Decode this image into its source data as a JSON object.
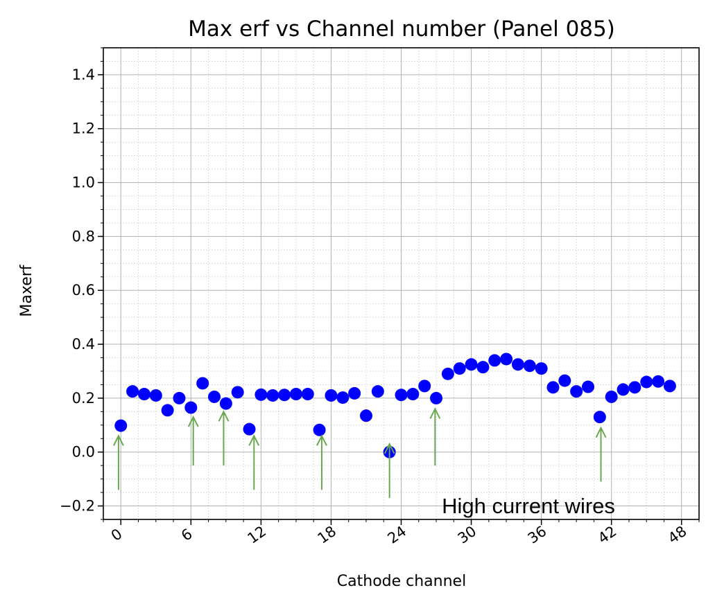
{
  "chart_data": {
    "type": "scatter",
    "title": "Max erf vs Channel number (Panel 085)",
    "xlabel": "Cathode channel",
    "ylabel": "Maxerf",
    "xlim": [
      -1.5,
      49.5
    ],
    "ylim": [
      -0.25,
      1.5
    ],
    "xticks": [
      0,
      6,
      12,
      18,
      24,
      30,
      36,
      42,
      48
    ],
    "xtick_labels": [
      "0",
      "6",
      "12",
      "18",
      "24",
      "30",
      "36",
      "42",
      "48"
    ],
    "yticks": [
      -0.2,
      0.0,
      0.2,
      0.4,
      0.6,
      0.8,
      1.0,
      1.2,
      1.4
    ],
    "ytick_labels": [
      "−0.2",
      "0.0",
      "0.2",
      "0.4",
      "0.6",
      "0.8",
      "1.0",
      "1.2",
      "1.4"
    ],
    "grid": true,
    "minor_grid": true,
    "marker_color": "#0000ff",
    "annotation_color": "#6aa84f",
    "series": [
      {
        "x": [
          0,
          1,
          2,
          3,
          4,
          5,
          6,
          7,
          8,
          9,
          10,
          11,
          12,
          13,
          14,
          15,
          16,
          17,
          18,
          19,
          20,
          21,
          22,
          23,
          24,
          25,
          26,
          27,
          28,
          29,
          30,
          31,
          32,
          33,
          34,
          35,
          36,
          37,
          38,
          39,
          40,
          41,
          42,
          43,
          44,
          45,
          46,
          47
        ],
        "y": [
          0.098,
          0.225,
          0.215,
          0.21,
          0.155,
          0.2,
          0.165,
          0.255,
          0.205,
          0.18,
          0.222,
          0.085,
          0.213,
          0.21,
          0.212,
          0.215,
          0.215,
          0.082,
          0.21,
          0.202,
          0.218,
          0.135,
          0.225,
          0.0,
          0.212,
          0.215,
          0.245,
          0.2,
          0.29,
          0.31,
          0.325,
          0.315,
          0.34,
          0.345,
          0.325,
          0.32,
          0.31,
          0.24,
          0.265,
          0.225,
          0.242,
          0.13,
          0.205,
          0.232,
          0.24,
          0.26,
          0.262,
          0.245
        ]
      }
    ],
    "annotations": {
      "label": "High current wires",
      "arrows": [
        {
          "x": -0.2,
          "y_tail": -0.14,
          "y_head": 0.06
        },
        {
          "x": 6.2,
          "y_tail": -0.05,
          "y_head": 0.13
        },
        {
          "x": 8.8,
          "y_tail": -0.05,
          "y_head": 0.15
        },
        {
          "x": 11.4,
          "y_tail": -0.14,
          "y_head": 0.06
        },
        {
          "x": 17.2,
          "y_tail": -0.14,
          "y_head": 0.06
        },
        {
          "x": 23.0,
          "y_tail": -0.17,
          "y_head": 0.03
        },
        {
          "x": 26.9,
          "y_tail": -0.05,
          "y_head": 0.16
        },
        {
          "x": 41.1,
          "y_tail": -0.11,
          "y_head": 0.09
        }
      ]
    }
  }
}
